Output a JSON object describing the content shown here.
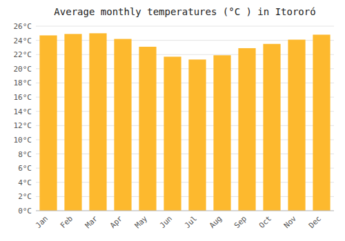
{
  "chart_data": {
    "type": "bar",
    "title": "Average monthly temperatures (°C ) in Itororó",
    "categories": [
      "Jan",
      "Feb",
      "Mar",
      "Apr",
      "May",
      "Jun",
      "Jul",
      "Aug",
      "Sep",
      "Oct",
      "Nov",
      "Dec"
    ],
    "values": [
      24.7,
      24.9,
      25.0,
      24.2,
      23.1,
      21.7,
      21.3,
      21.9,
      22.9,
      23.5,
      24.1,
      24.8
    ],
    "color": "#FDB92E",
    "ylim": [
      0,
      26
    ],
    "yticks": [
      {
        "value": 0,
        "label": "0°C"
      },
      {
        "value": 2,
        "label": "2°C"
      },
      {
        "value": 4,
        "label": "4°C"
      },
      {
        "value": 6,
        "label": "6°C"
      },
      {
        "value": 8,
        "label": "8°C"
      },
      {
        "value": 10,
        "label": "10°C"
      },
      {
        "value": 12,
        "label": "12°C"
      },
      {
        "value": 14,
        "label": "14°C"
      },
      {
        "value": 16,
        "label": "16°C"
      },
      {
        "value": 18,
        "label": "18°C"
      },
      {
        "value": 20,
        "label": "20°C"
      },
      {
        "value": 22,
        "label": "22°C"
      },
      {
        "value": 24,
        "label": "24°C"
      },
      {
        "value": 26,
        "label": "26°C"
      }
    ],
    "grid": true
  }
}
